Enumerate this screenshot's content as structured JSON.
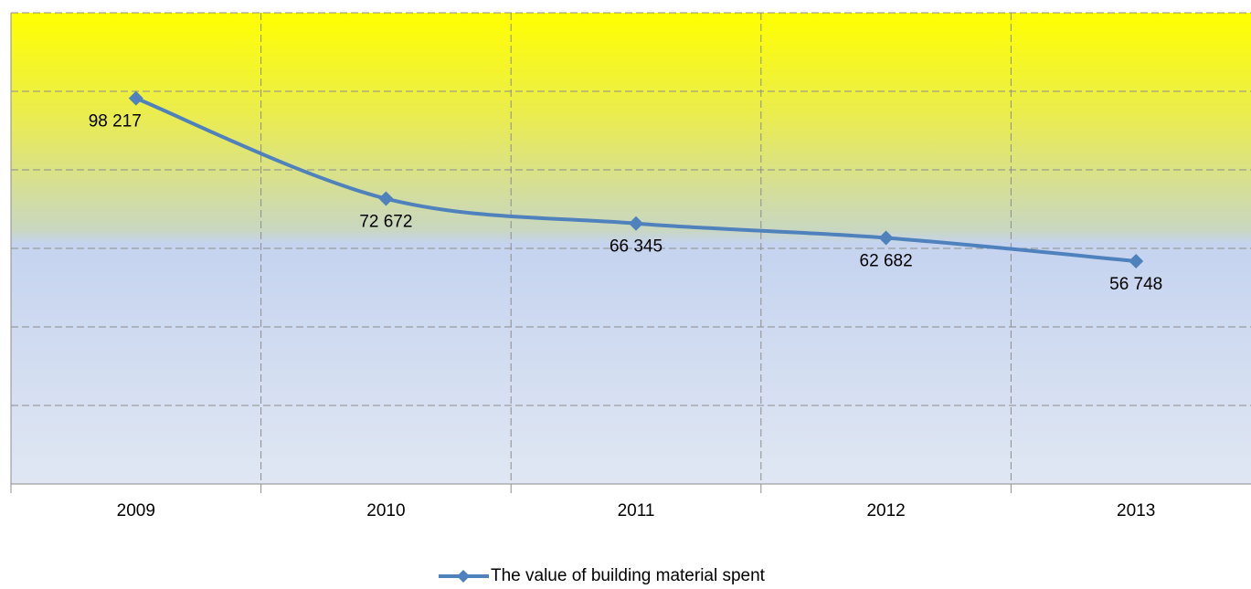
{
  "chart_data": {
    "type": "line",
    "categories": [
      "2009",
      "2010",
      "2011",
      "2012",
      "2013"
    ],
    "series": [
      {
        "name": "The value of building material spent",
        "color": "#4f81bd",
        "values": [
          98217,
          72672,
          66345,
          62682,
          56748
        ],
        "value_labels": [
          "98 217",
          "72 672",
          "66 345",
          "62 682",
          "56 748"
        ]
      }
    ],
    "ylim": [
      0,
      120000
    ],
    "yticks": [
      0,
      20000,
      40000,
      60000,
      80000,
      100000,
      120000
    ],
    "grid": true,
    "legend": "bottom"
  }
}
